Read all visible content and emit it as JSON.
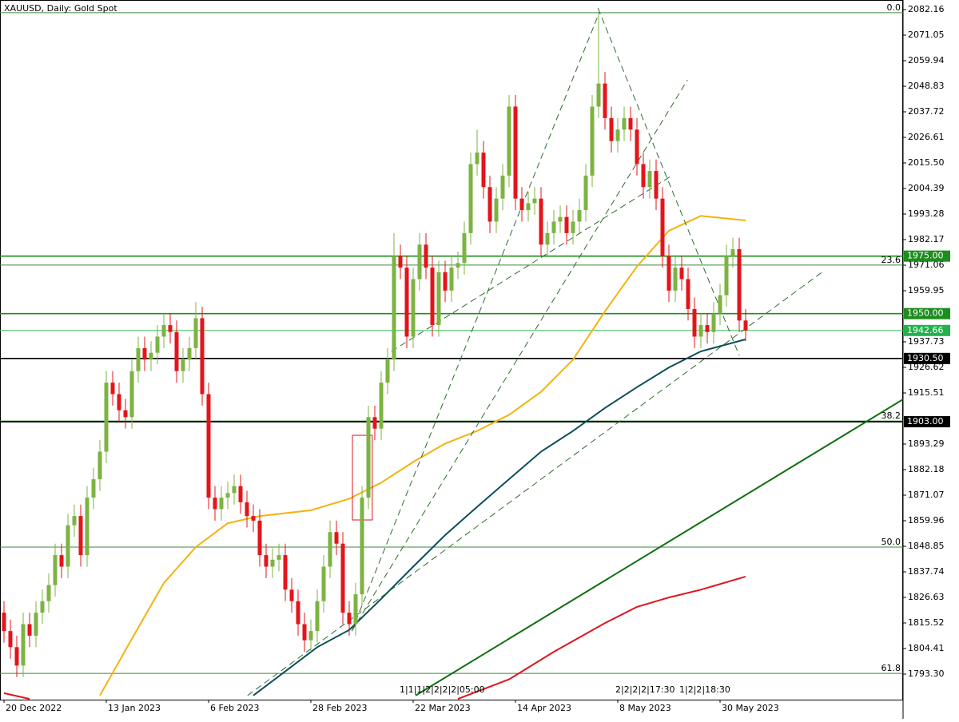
{
  "chart_data": {
    "type": "candlestick",
    "title": "XAUUSD, Daily:  Gold Spot",
    "xlim": [
      -0.625,
      140.625
    ],
    "ylim": [
      1782.19,
      2086.33
    ],
    "bull_color": "#7cb342",
    "bear_color": "#e3151b",
    "xticks": [
      {
        "value": 0,
        "label": "20 Dec 2022"
      },
      {
        "value": 16,
        "label": "13 Jan 2023"
      },
      {
        "value": 32,
        "label": "6 Feb 2023"
      },
      {
        "value": 48,
        "label": "28 Feb 2023"
      },
      {
        "value": 64,
        "label": "22 Mar 2023"
      },
      {
        "value": 80,
        "label": "14 Apr 2023"
      },
      {
        "value": 96,
        "label": "8 May 2023"
      },
      {
        "value": 112,
        "label": "30 May 2023"
      }
    ],
    "yticks": [
      2082.16,
      2071.05,
      2059.94,
      2048.83,
      2037.72,
      2026.61,
      {
        "value": 2015.5,
        "label": "2015.50"
      },
      2004.39,
      1993.28,
      1982.17,
      1971.06,
      1959.95,
      1937.73,
      1926.62,
      1915.51,
      1893.29,
      1882.18,
      1871.07,
      1859.96,
      1848.85,
      1837.74,
      1826.63,
      1815.52,
      1804.41,
      {
        "value": 1793.3,
        "label": "1793.30"
      }
    ],
    "open": [
      1820,
      1812,
      1805,
      1797,
      1815,
      1810,
      1820,
      1825,
      1832,
      1845,
      1840,
      1858,
      1862,
      1845,
      1870,
      1878,
      1890,
      1920,
      1915,
      1908,
      1905,
      1925,
      1935,
      1930,
      1933,
      1940,
      1945,
      1942,
      1925,
      1930,
      1935,
      1948,
      1915,
      1870,
      1865,
      1870,
      1872,
      1875,
      1868,
      1862,
      1860,
      1845,
      1840,
      1843,
      1845,
      1830,
      1825,
      1815,
      1808,
      1812,
      1825,
      1840,
      1855,
      1850,
      1820,
      1815,
      1828,
      1870,
      1905,
      1900,
      1920,
      1930,
      1975,
      1970,
      1940,
      1965,
      1980,
      1970,
      1945,
      1968,
      1960,
      1970,
      1972,
      1985,
      2015,
      2020,
      2005,
      1990,
      2000,
      2010,
      2040,
      2000,
      1995,
      1998,
      2000,
      1980,
      1985,
      1990,
      1992,
      1985,
      1990,
      1995,
      2010,
      2040,
      2050,
      2035,
      2025,
      2030,
      2035,
      2030,
      2015,
      2005,
      2012,
      2000,
      1975,
      1960,
      1970,
      1965,
      1952,
      1940,
      1945,
      1942,
      1950,
      1958,
      1975,
      1978,
      1947
    ],
    "high": [
      1825,
      1817,
      1810,
      1820,
      1820,
      1825,
      1830,
      1837,
      1850,
      1850,
      1863,
      1867,
      1867,
      1875,
      1883,
      1895,
      1925,
      1925,
      1920,
      1913,
      1930,
      1940,
      1940,
      1938,
      1945,
      1950,
      1950,
      1947,
      1935,
      1940,
      1955,
      1953,
      1920,
      1875,
      1875,
      1877,
      1880,
      1880,
      1873,
      1867,
      1865,
      1850,
      1848,
      1850,
      1850,
      1835,
      1830,
      1820,
      1817,
      1830,
      1845,
      1860,
      1860,
      1855,
      1825,
      1833,
      1875,
      1910,
      1910,
      1925,
      1935,
      1985,
      1980,
      1975,
      1970,
      1985,
      1985,
      1975,
      1973,
      1973,
      1975,
      1977,
      1990,
      2020,
      2030,
      2025,
      2010,
      2005,
      2015,
      2045,
      2045,
      2005,
      2003,
      2005,
      2005,
      1990,
      1995,
      1997,
      1997,
      1995,
      2000,
      2015,
      2045,
      2080,
      2055,
      2040,
      2035,
      2040,
      2040,
      2035,
      2020,
      2017,
      2017,
      2005,
      1980,
      1975,
      1975,
      1970,
      1957,
      1950,
      1950,
      1955,
      1963,
      1980,
      1983,
      1983,
      1952
    ],
    "low": [
      1807,
      1800,
      1792,
      1792,
      1805,
      1805,
      1815,
      1820,
      1827,
      1835,
      1835,
      1853,
      1840,
      1840,
      1865,
      1873,
      1885,
      1910,
      1903,
      1900,
      1900,
      1920,
      1925,
      1925,
      1928,
      1935,
      1937,
      1920,
      1920,
      1925,
      1930,
      1910,
      1865,
      1860,
      1860,
      1865,
      1867,
      1863,
      1857,
      1855,
      1840,
      1835,
      1835,
      1838,
      1825,
      1820,
      1810,
      1803,
      1803,
      1807,
      1820,
      1835,
      1845,
      1815,
      1810,
      1810,
      1823,
      1865,
      1895,
      1895,
      1915,
      1925,
      1965,
      1935,
      1935,
      1960,
      1965,
      1940,
      1940,
      1955,
      1955,
      1965,
      1967,
      1980,
      2010,
      2000,
      1985,
      1985,
      1995,
      2005,
      1995,
      1990,
      1990,
      1993,
      1975,
      1975,
      1980,
      1985,
      1980,
      1980,
      1985,
      1990,
      2005,
      2035,
      2030,
      2020,
      2020,
      2025,
      2025,
      2010,
      2000,
      2000,
      1995,
      1970,
      1955,
      1955,
      1960,
      1947,
      1935,
      1935,
      1937,
      1937,
      1945,
      1953,
      1970,
      1942,
      1938
    ],
    "close": [
      1812,
      1805,
      1797,
      1815,
      1810,
      1820,
      1825,
      1832,
      1845,
      1840,
      1858,
      1862,
      1845,
      1870,
      1878,
      1890,
      1920,
      1915,
      1908,
      1905,
      1925,
      1935,
      1930,
      1933,
      1940,
      1945,
      1942,
      1925,
      1930,
      1935,
      1948,
      1915,
      1870,
      1865,
      1870,
      1872,
      1875,
      1868,
      1862,
      1860,
      1845,
      1840,
      1843,
      1845,
      1830,
      1825,
      1815,
      1808,
      1812,
      1825,
      1840,
      1855,
      1850,
      1820,
      1815,
      1828,
      1870,
      1905,
      1900,
      1920,
      1930,
      1975,
      1970,
      1940,
      1965,
      1980,
      1970,
      1945,
      1968,
      1960,
      1970,
      1972,
      1985,
      2015,
      2020,
      2005,
      1990,
      2000,
      2010,
      2040,
      2000,
      1995,
      1998,
      2000,
      1980,
      1985,
      1990,
      1992,
      1985,
      1990,
      1995,
      2010,
      2040,
      2050,
      2035,
      2025,
      2030,
      2035,
      2030,
      2015,
      2005,
      2012,
      2000,
      1975,
      1960,
      1970,
      1965,
      1952,
      1940,
      1945,
      1942,
      1950,
      1958,
      1975,
      1978,
      1947,
      1942.66
    ],
    "overlays": [
      {
        "color": "#f5b20e",
        "x": [
          15,
          20,
          25,
          30,
          35,
          40,
          48,
          54,
          59,
          64,
          69,
          74,
          79,
          84,
          89,
          94,
          99,
          104,
          109,
          116
        ],
        "values": [
          1784,
          1808.6,
          1832.9,
          1848.5,
          1858.9,
          1862,
          1864.5,
          1869.5,
          1876.5,
          1885.5,
          1893.5,
          1899,
          1906,
          1916,
          1930,
          1951,
          1970.5,
          1986,
          1992.5,
          1990.5
        ]
      },
      {
        "color": "#0d4d5c",
        "x": [
          39,
          49,
          54,
          59,
          64,
          69,
          74,
          79,
          84,
          89,
          94,
          99,
          104,
          109,
          116
        ],
        "values": [
          1784,
          1805,
          1812.5,
          1826,
          1840,
          1853.7,
          1866,
          1878,
          1890,
          1899,
          1909,
          1918,
          1926.6,
          1933.6,
          1938.8
        ]
      },
      {
        "color": "#e0141c",
        "x": [
          0,
          4
        ],
        "values": [
          1785,
          1782.5
        ]
      },
      {
        "color": "#e0141c",
        "x": [
          71,
          79,
          86,
          94,
          99,
          104,
          109,
          116
        ],
        "values": [
          1782.5,
          1791,
          1803,
          1815.5,
          1822.5,
          1826.6,
          1830,
          1835.7
        ]
      }
    ],
    "trendlines": [
      {
        "color": "#0f6e0f",
        "dashed": false,
        "x": [
          64.4,
          140.6
        ],
        "values": [
          1784,
          1912.7
        ]
      },
      {
        "color": "#2e6b2e",
        "dashed": true,
        "x": [
          92.9,
          115
        ],
        "values": [
          2082.8,
          1931.8
        ]
      },
      {
        "color": "#2e6b2e",
        "dashed": true,
        "x": [
          38.1,
          128.1
        ],
        "values": [
          1784,
          1968.3
        ]
      },
      {
        "color": "#2e6b2e",
        "dashed": true,
        "x": [
          54.4,
          106.9
        ],
        "values": [
          1812,
          2051.6
        ]
      },
      {
        "color": "#2e6b2e",
        "dashed": true,
        "x": [
          60.6,
          104.4
        ],
        "values": [
          1933.6,
          2009.9
        ]
      },
      {
        "color": "#2e6b2e",
        "dashed": true,
        "x": [
          54.4,
          93.1
        ],
        "values": [
          1812,
          2080.8
        ]
      }
    ],
    "box": {
      "color": "#e0141c",
      "x": [
        54.5,
        57.6
      ],
      "values": [
        1897.1,
        1860.3
      ]
    },
    "levels": [
      {
        "value": 1975,
        "label": "1975.00",
        "color": "#1e8c1e",
        "label_bg": "#1e8c1e"
      },
      {
        "value": 1950,
        "label": "1950.00",
        "color": "#1e8c1e",
        "label_bg": "#1e8c1e"
      },
      {
        "value": 1942.66,
        "label": "1942.66",
        "color": "#3cc35a",
        "label_bg": "#22b14c"
      },
      {
        "value": 1930.5,
        "label": "1930.50",
        "color": "#000000",
        "label_bg": "#000000"
      },
      {
        "value": 1903,
        "label": "1903.00",
        "color": "#000000",
        "label_bg": "#000000"
      }
    ],
    "fib_color": "#3a8a3a",
    "fib_levels": [
      {
        "value": 2080.8,
        "label": "0.0"
      },
      {
        "value": 1971.1,
        "label": "23.6"
      },
      {
        "value": 1903.3,
        "label": "38.2"
      },
      {
        "value": 1848.5,
        "label": "50.0"
      },
      {
        "value": 1793.6,
        "label": "61.8"
      }
    ],
    "time_flags": [
      "1|1|1|2|2|2|2|05:00",
      "2|2|2|2|17:30",
      "1|2|2|18:30"
    ]
  }
}
